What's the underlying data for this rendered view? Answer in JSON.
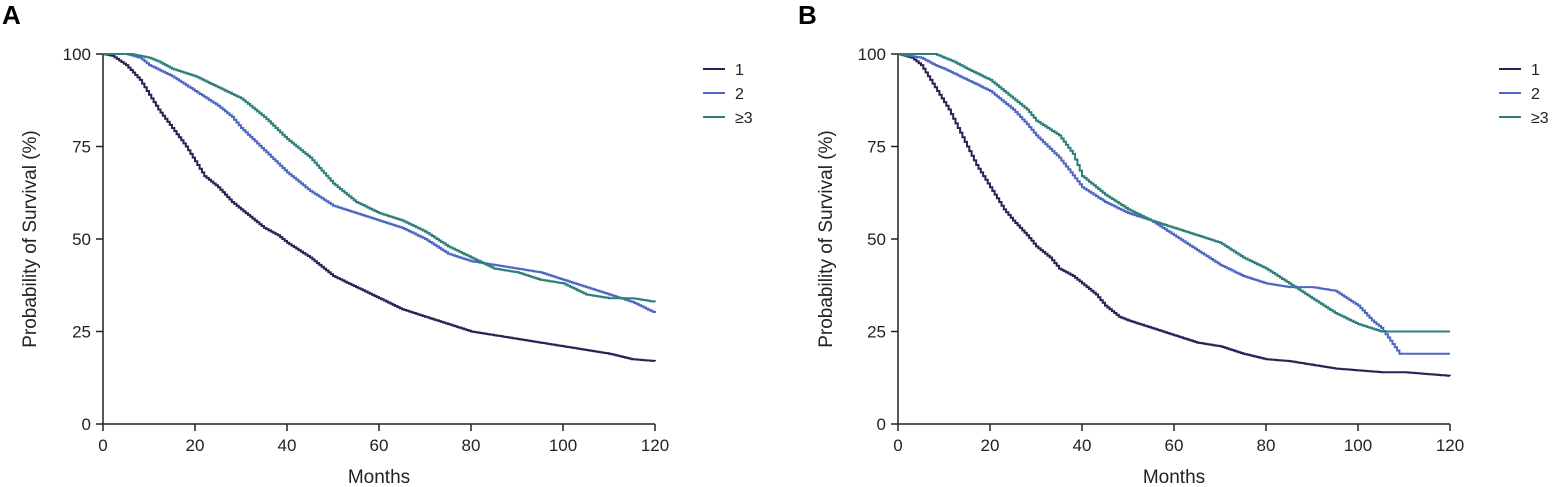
{
  "colors": {
    "g1": "#2e1f57",
    "g2": "#4f67c2",
    "g3": "#2e7f7b",
    "axis": "#222222"
  },
  "chart_data": [
    {
      "panel": "A",
      "type": "line",
      "xlabel": "Months",
      "ylabel": "Probability of Survival (%)",
      "xlim": [
        0,
        120
      ],
      "ylim": [
        0,
        100
      ],
      "xticks": [
        0,
        20,
        40,
        60,
        80,
        100,
        120
      ],
      "yticks": [
        0,
        25,
        50,
        75,
        100
      ],
      "legend_position": "top-right",
      "series": [
        {
          "name": "1",
          "color": "#2e1f57",
          "x": [
            0,
            2,
            5,
            8,
            10,
            12,
            15,
            18,
            20,
            22,
            25,
            28,
            30,
            33,
            35,
            38,
            40,
            45,
            50,
            55,
            60,
            65,
            70,
            75,
            80,
            85,
            90,
            95,
            100,
            105,
            110,
            115,
            120
          ],
          "y": [
            100,
            99.5,
            97,
            93,
            89,
            85,
            80,
            75,
            71,
            67,
            64,
            60,
            58,
            55,
            53,
            51,
            49,
            45,
            40,
            37,
            34,
            31,
            29,
            27,
            25,
            24,
            23,
            22,
            21,
            20,
            19,
            17.5,
            17
          ]
        },
        {
          "name": "2",
          "color": "#4f67c2",
          "x": [
            0,
            5,
            8,
            10,
            15,
            20,
            25,
            28,
            30,
            35,
            40,
            45,
            50,
            55,
            60,
            65,
            70,
            75,
            80,
            85,
            90,
            95,
            100,
            105,
            110,
            115,
            120
          ],
          "y": [
            100,
            100,
            99,
            97,
            94,
            90,
            86,
            83,
            80,
            74,
            68,
            63,
            59,
            57,
            55,
            53,
            50,
            46,
            44,
            43,
            42,
            41,
            39,
            37,
            35,
            33,
            30
          ]
        },
        {
          "name": "≥3",
          "color": "#2e7f7b",
          "x": [
            0,
            6,
            10,
            12,
            15,
            20,
            25,
            30,
            35,
            40,
            45,
            50,
            55,
            60,
            65,
            70,
            75,
            80,
            85,
            90,
            95,
            100,
            105,
            110,
            115,
            120
          ],
          "y": [
            100,
            100,
            99,
            98,
            96,
            94,
            91,
            88,
            83,
            77,
            72,
            65,
            60,
            57,
            55,
            52,
            48,
            45,
            42,
            41,
            39,
            38,
            35,
            34,
            34,
            33
          ]
        }
      ]
    },
    {
      "panel": "B",
      "type": "line",
      "xlabel": "Months",
      "ylabel": "Probability of Survival (%)",
      "xlim": [
        0,
        120
      ],
      "ylim": [
        0,
        100
      ],
      "xticks": [
        0,
        20,
        40,
        60,
        80,
        100,
        120
      ],
      "yticks": [
        0,
        25,
        50,
        75,
        100
      ],
      "legend_position": "top-right",
      "series": [
        {
          "name": "1",
          "color": "#2e1f57",
          "x": [
            0,
            3,
            5,
            7,
            9,
            11,
            13,
            15,
            17,
            19,
            21,
            23,
            25,
            28,
            30,
            33,
            35,
            38,
            40,
            43,
            45,
            48,
            50,
            55,
            60,
            65,
            70,
            75,
            80,
            85,
            90,
            95,
            100,
            105,
            110,
            115,
            120
          ],
          "y": [
            100,
            99,
            97,
            93,
            89,
            85,
            80,
            75,
            70,
            66,
            62,
            58,
            55,
            51,
            48,
            45,
            42,
            40,
            38,
            35,
            32,
            29,
            28,
            26,
            24,
            22,
            21,
            19,
            17.5,
            17,
            16,
            15,
            14.5,
            14,
            14,
            13.5,
            13
          ]
        },
        {
          "name": "2",
          "color": "#4f67c2",
          "x": [
            0,
            5,
            8,
            10,
            15,
            20,
            25,
            28,
            30,
            35,
            40,
            45,
            50,
            55,
            60,
            65,
            70,
            75,
            80,
            85,
            90,
            95,
            100,
            103,
            105,
            109,
            112,
            115,
            120
          ],
          "y": [
            100,
            99,
            97,
            96,
            93,
            90,
            85,
            81,
            78,
            72,
            64,
            60,
            57,
            55,
            51,
            47,
            43,
            40,
            38,
            37,
            37,
            36,
            32,
            28,
            26,
            19,
            19,
            19,
            19
          ]
        },
        {
          "name": "≥3",
          "color": "#2e7f7b",
          "x": [
            0,
            8,
            10,
            12,
            15,
            20,
            25,
            28,
            30,
            35,
            38,
            40,
            45,
            50,
            55,
            60,
            65,
            70,
            75,
            80,
            85,
            90,
            95,
            100,
            105,
            110,
            115,
            120
          ],
          "y": [
            100,
            100,
            99,
            98,
            96,
            93,
            88,
            85,
            82,
            78,
            73,
            67,
            62,
            58,
            55,
            53,
            51,
            49,
            45,
            42,
            38,
            34,
            30,
            27,
            25,
            25,
            25,
            25
          ]
        }
      ]
    }
  ]
}
